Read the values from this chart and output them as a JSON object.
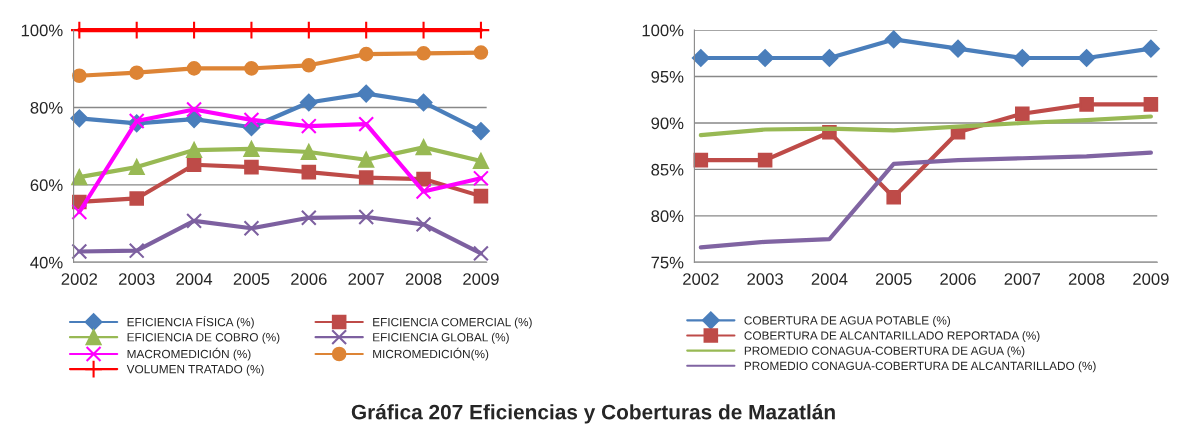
{
  "chart_data": [
    {
      "type": "line",
      "title": "Gráfica 207 Eficiencias y Coberturas de Mazatlán",
      "categories": [
        "2002",
        "2003",
        "2004",
        "2005",
        "2006",
        "2007",
        "2008",
        "2009"
      ],
      "ylim": [
        40,
        100
      ],
      "yticks": [
        {
          "value": 40,
          "label": "40%"
        },
        {
          "value": 60,
          "label": "60%"
        },
        {
          "value": 80,
          "label": "80%"
        },
        {
          "value": 100,
          "label": "100%"
        }
      ],
      "grid": "y",
      "legend": "bottom",
      "series": [
        {
          "name": "EFICIENCIA FÍSICA (%)",
          "color": "#4a7ebb",
          "marker": "diamond",
          "values": [
            77.2,
            75.9,
            77,
            74.9,
            81.3,
            83.6,
            81.3,
            73.9
          ]
        },
        {
          "name": "EFICIENCIA COMERCIAL (%)",
          "color": "#be4b48",
          "marker": "square",
          "values": [
            55.6,
            56.5,
            65.2,
            64.6,
            63.3,
            61.9,
            61.5,
            57.1
          ]
        },
        {
          "name": "EFICIENCIA DE COBRO (%)",
          "color": "#98b954",
          "marker": "triangle",
          "values": [
            62,
            64.6,
            69,
            69.3,
            68.5,
            66.5,
            69.7,
            66.2
          ]
        },
        {
          "name": "EFICIENCIA GLOBAL (%)",
          "color": "#7d60a0",
          "marker": "cross",
          "values": [
            42.8,
            43,
            50.7,
            48.8,
            51.5,
            51.7,
            49.8,
            42.3
          ]
        },
        {
          "name": "MACROMEDICIÓN (%)",
          "color": "#ff00ff",
          "marker": "cross",
          "values": [
            53,
            76.5,
            79.5,
            76.8,
            75.2,
            75.7,
            58.3,
            61.7
          ]
        },
        {
          "name": "MICROMEDICIÓN(%)",
          "color": "#dd8435",
          "marker": "circle",
          "values": [
            88.2,
            89,
            90.1,
            90.1,
            90.9,
            93.8,
            94,
            94.2
          ]
        },
        {
          "name": "VOLUMEN TRATADO (%)",
          "color": "#ff0000",
          "marker": "plus",
          "values": [
            100,
            100,
            100,
            100,
            100,
            100,
            100,
            100
          ]
        }
      ]
    },
    {
      "type": "line",
      "categories": [
        "2002",
        "2003",
        "2004",
        "2005",
        "2006",
        "2007",
        "2008",
        "2009"
      ],
      "ylim": [
        75,
        100
      ],
      "yticks": [
        {
          "value": 75,
          "label": "75%"
        },
        {
          "value": 80,
          "label": "80%"
        },
        {
          "value": 85,
          "label": "85%"
        },
        {
          "value": 90,
          "label": "90%"
        },
        {
          "value": 95,
          "label": "95%"
        },
        {
          "value": 100,
          "label": "100%"
        }
      ],
      "grid": "y",
      "legend": "bottom",
      "series": [
        {
          "name": "COBERTURA DE AGUA POTABLE (%)",
          "color": "#4a7ebb",
          "marker": "diamond",
          "values": [
            97,
            97,
            97,
            99,
            98,
            97,
            97,
            98
          ]
        },
        {
          "name": "COBERTURA DE ALCANTARILLADO REPORTADA (%)",
          "color": "#be4b48",
          "marker": "square",
          "values": [
            86,
            86,
            89,
            82,
            89,
            91,
            92,
            92
          ]
        },
        {
          "name": "PROMEDIO CONAGUA-COBERTURA DE AGUA (%)",
          "color": "#98b954",
          "marker": "none",
          "values": [
            88.7,
            89.3,
            89.4,
            89.2,
            89.6,
            90,
            90.3,
            90.7
          ]
        },
        {
          "name": "PROMEDIO CONAGUA-COBERTURA DE ALCANTARILLADO (%)",
          "color": "#8064a2",
          "marker": "none",
          "values": [
            76.6,
            77.2,
            77.5,
            85.6,
            86,
            86.2,
            86.4,
            86.8
          ]
        }
      ]
    }
  ]
}
